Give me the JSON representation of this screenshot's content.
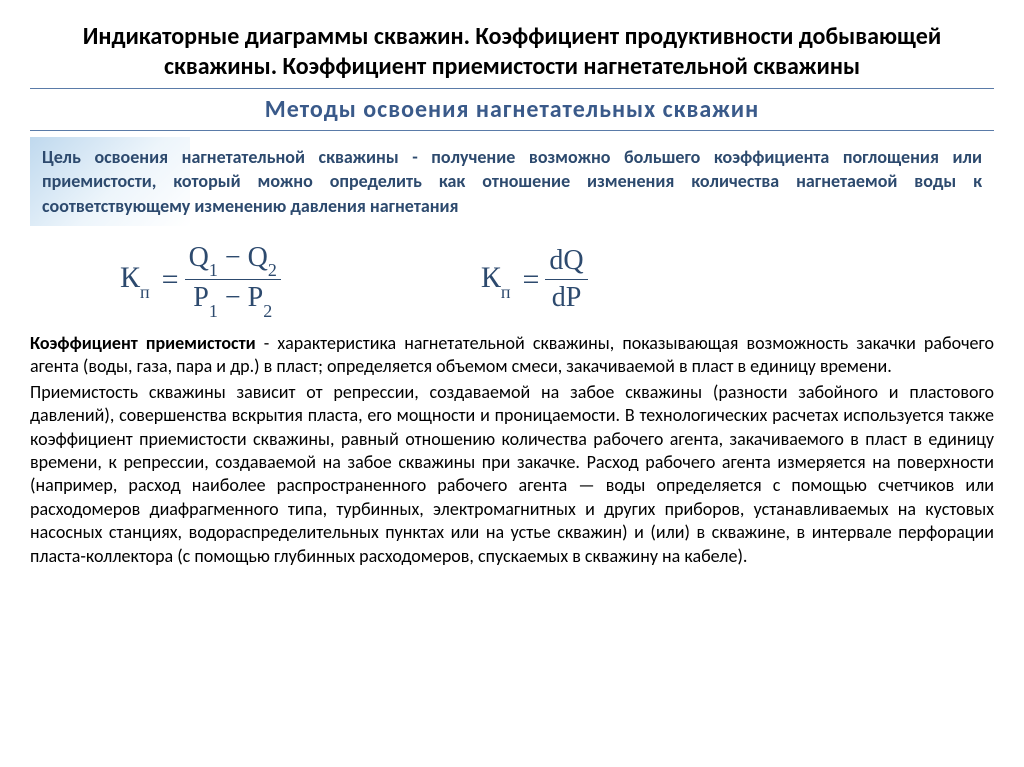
{
  "title": "Индикаторные диаграммы скважин. Коэффициент продуктивности добывающей скважины. Коэффициент приемистости нагнетательной скважины",
  "section_title": "Методы освоения нагнетательных скважин",
  "goal": {
    "lead": "Цель освоения нагнетательной скважины - получение возможно большего коэффициента поглощения или приемистости,",
    "rest": " который можно определить как отношение изменения количества нагнетаемой воды к соответствующему изменению давления нагнетания"
  },
  "formula1": {
    "lhs_sym": "К",
    "lhs_sub": "п",
    "num_l": "Q",
    "num_l_sub": "1",
    "num_r": "Q",
    "num_r_sub": "2",
    "den_l": "P",
    "den_l_sub": "1",
    "den_r": "P",
    "den_r_sub": "2"
  },
  "formula2": {
    "lhs_sym": "К",
    "lhs_sub": "п",
    "num": "dQ",
    "den": "dP"
  },
  "para1": {
    "lead": "Коэффициент приемистости",
    "rest": " - характеристика нагнетательной скважины, показывающая возможность закачки рабочего агента (воды, газа, пара и др.) в пласт; определяется объемом смеси, закачиваемой в пласт в единицу времени."
  },
  "para2": "Приемистость скважины зависит от репрессии, создаваемой на забое скважины (разности забойного и пластового давлений), совершенства вскрытия пласта, его мощности и проницаемости. В технологических расчетах используется также коэффициент приемистости скважины, равный отношению количества рабочего агента, закачиваемого в пласт в единицу времени, к репрессии, создаваемой на забое скважины при закачке. Расход рабочего агента измеряется на поверхности (например, расход наиболее распространенного рабочего агента — воды определяется с помощью счетчиков или расходомеров диафрагменного типа, турбинных, электромагнитных и других приборов, устанавливаемых на кустовых насосных станциях, водораспределительных пунктах или на устье скважин) и (или) в скважине, в интервале перфорации пласта-коллектора (с помощью глубинных расходомеров, спускаемых в скважину на кабеле)."
}
